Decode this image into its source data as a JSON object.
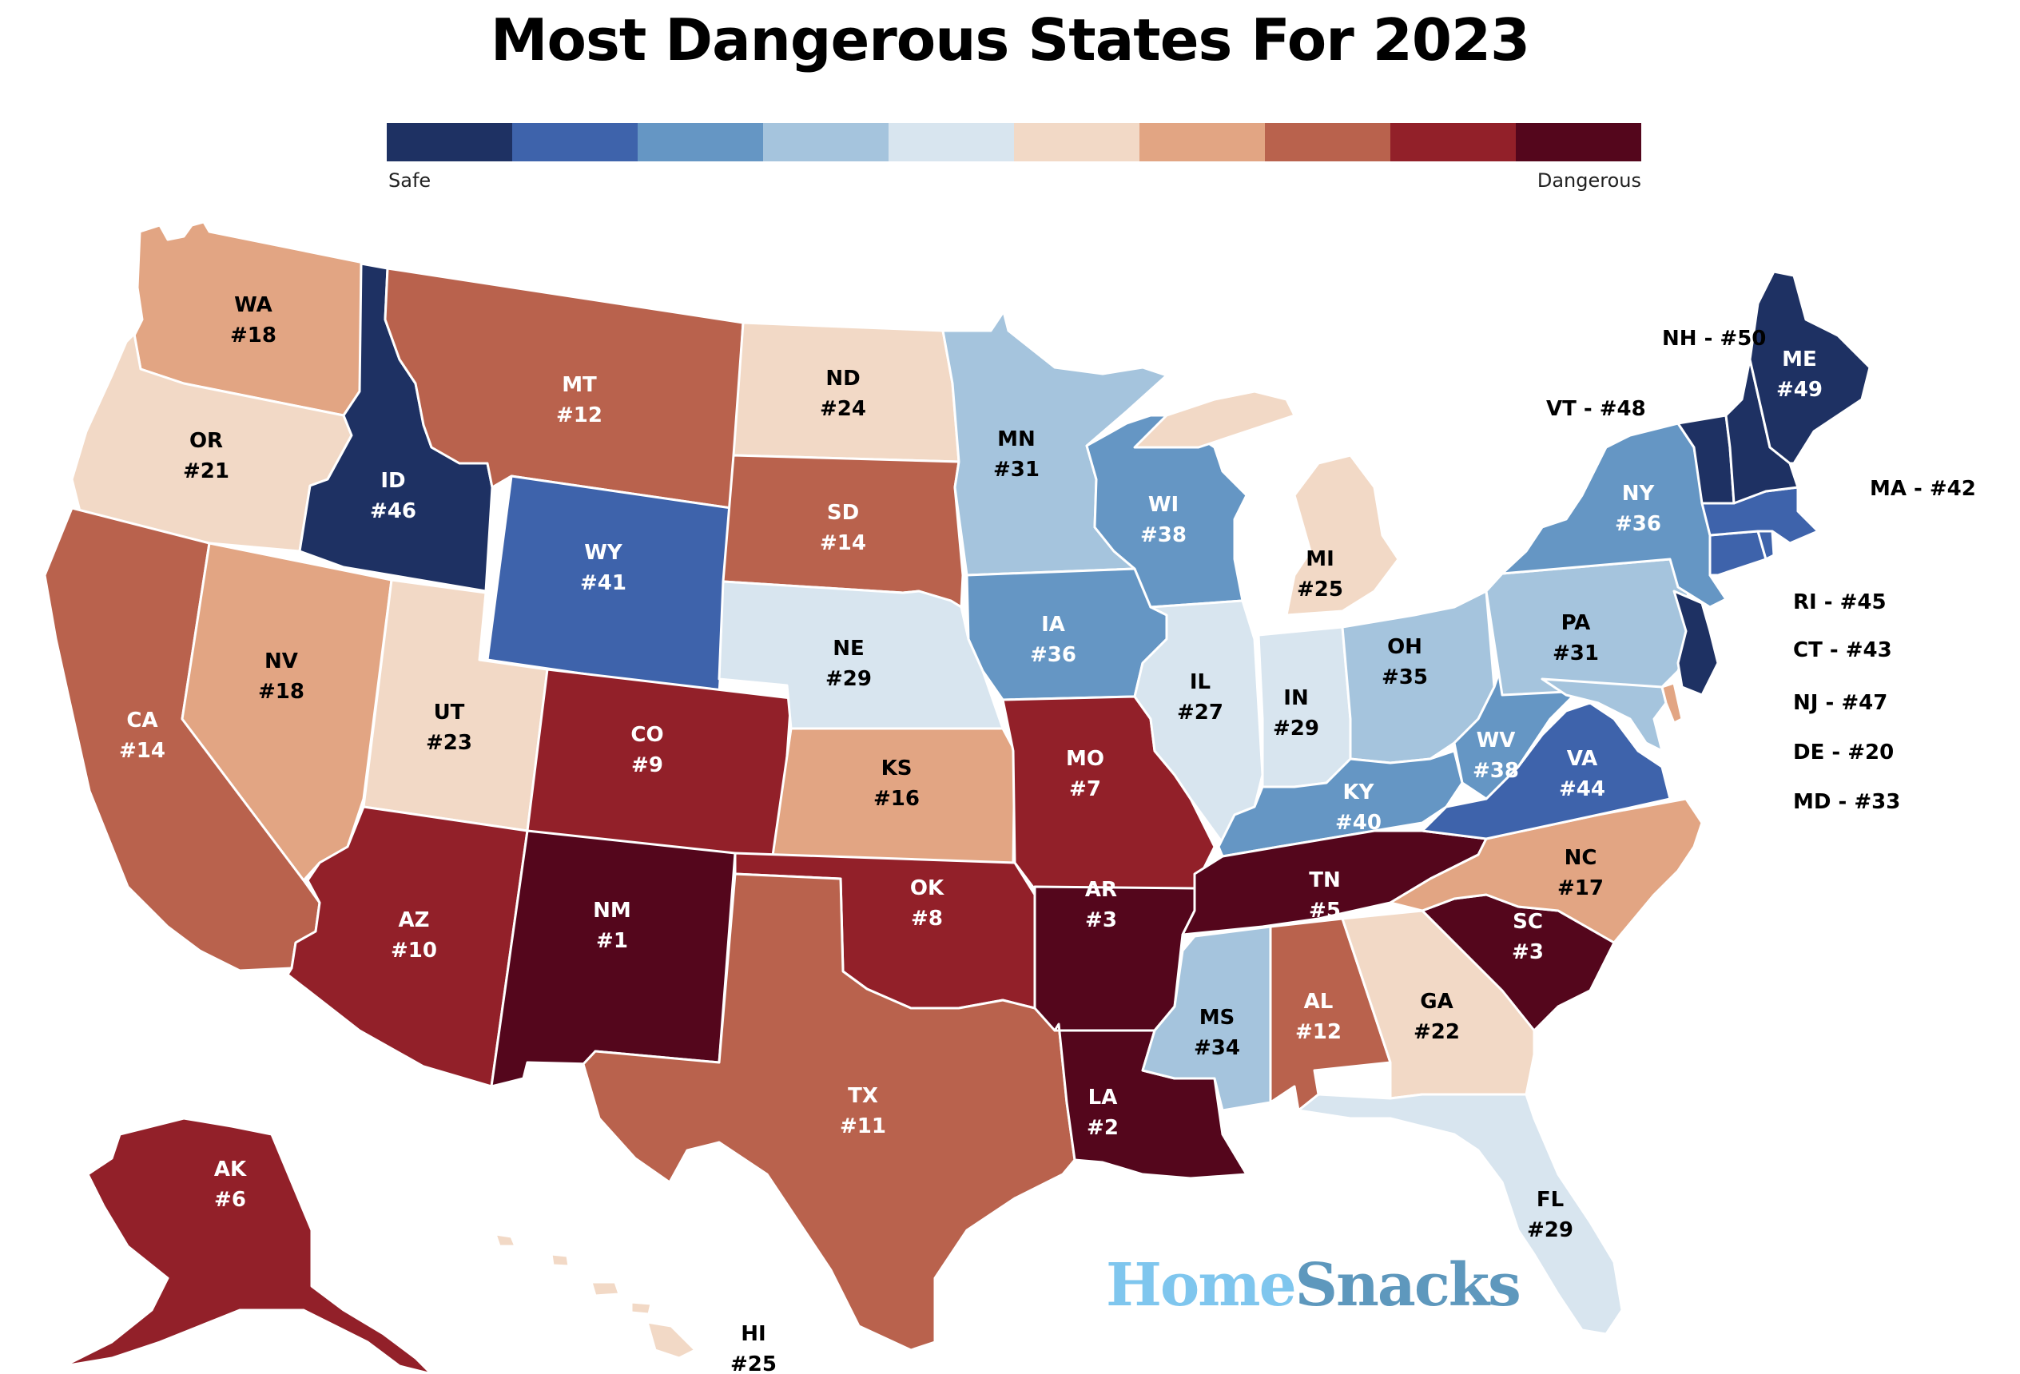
{
  "title": "Most Dangerous States For 2023",
  "legend": {
    "min_label": "Safe",
    "max_label": "Dangerous",
    "colors": [
      "#1e3163",
      "#3e63ab",
      "#6596c4",
      "#a5c4dd",
      "#d8e5ef",
      "#f2d9c6",
      "#e2a583",
      "#b9624d",
      "#922029",
      "#54061c"
    ]
  },
  "brand": {
    "part1": "Home",
    "part2": "Snacks"
  },
  "states": [
    {
      "abbr": "WA",
      "rank": "#18",
      "bin": 6
    },
    {
      "abbr": "OR",
      "rank": "#21",
      "bin": 5
    },
    {
      "abbr": "CA",
      "rank": "#14",
      "bin": 7
    },
    {
      "abbr": "ID",
      "rank": "#46",
      "bin": 0
    },
    {
      "abbr": "NV",
      "rank": "#18",
      "bin": 6
    },
    {
      "abbr": "MT",
      "rank": "#12",
      "bin": 7
    },
    {
      "abbr": "WY",
      "rank": "#41",
      "bin": 1
    },
    {
      "abbr": "UT",
      "rank": "#23",
      "bin": 5
    },
    {
      "abbr": "AZ",
      "rank": "#10",
      "bin": 8
    },
    {
      "abbr": "CO",
      "rank": "#9",
      "bin": 8
    },
    {
      "abbr": "NM",
      "rank": "#1",
      "bin": 9
    },
    {
      "abbr": "ND",
      "rank": "#24",
      "bin": 5
    },
    {
      "abbr": "SD",
      "rank": "#14",
      "bin": 7
    },
    {
      "abbr": "NE",
      "rank": "#29",
      "bin": 4
    },
    {
      "abbr": "KS",
      "rank": "#16",
      "bin": 6
    },
    {
      "abbr": "OK",
      "rank": "#8",
      "bin": 8
    },
    {
      "abbr": "TX",
      "rank": "#11",
      "bin": 7
    },
    {
      "abbr": "MN",
      "rank": "#31",
      "bin": 3
    },
    {
      "abbr": "IA",
      "rank": "#36",
      "bin": 2
    },
    {
      "abbr": "MO",
      "rank": "#7",
      "bin": 8
    },
    {
      "abbr": "AR",
      "rank": "#3",
      "bin": 9
    },
    {
      "abbr": "LA",
      "rank": "#2",
      "bin": 9
    },
    {
      "abbr": "WI",
      "rank": "#38",
      "bin": 2
    },
    {
      "abbr": "IL",
      "rank": "#27",
      "bin": 4
    },
    {
      "abbr": "MI",
      "rank": "#25",
      "bin": 5
    },
    {
      "abbr": "IN",
      "rank": "#29",
      "bin": 4
    },
    {
      "abbr": "OH",
      "rank": "#35",
      "bin": 3
    },
    {
      "abbr": "KY",
      "rank": "#40",
      "bin": 2
    },
    {
      "abbr": "TN",
      "rank": "#5",
      "bin": 9
    },
    {
      "abbr": "MS",
      "rank": "#34",
      "bin": 3
    },
    {
      "abbr": "AL",
      "rank": "#12",
      "bin": 7
    },
    {
      "abbr": "GA",
      "rank": "#22",
      "bin": 5
    },
    {
      "abbr": "FL",
      "rank": "#29",
      "bin": 4
    },
    {
      "abbr": "SC",
      "rank": "#3",
      "bin": 9
    },
    {
      "abbr": "NC",
      "rank": "#17",
      "bin": 6
    },
    {
      "abbr": "VA",
      "rank": "#44",
      "bin": 1
    },
    {
      "abbr": "WV",
      "rank": "#38",
      "bin": 2
    },
    {
      "abbr": "PA",
      "rank": "#31",
      "bin": 3
    },
    {
      "abbr": "NY",
      "rank": "#36",
      "bin": 2
    },
    {
      "abbr": "ME",
      "rank": "#49",
      "bin": 0
    },
    {
      "abbr": "AK",
      "rank": "#6",
      "bin": 8
    },
    {
      "abbr": "HI",
      "rank": "#25",
      "bin": 5
    }
  ],
  "callouts": [
    {
      "abbr": "NH",
      "rank": "#50",
      "bin": 0,
      "text": "NH - #50"
    },
    {
      "abbr": "VT",
      "rank": "#48",
      "bin": 0,
      "text": "VT - #48"
    },
    {
      "abbr": "MA",
      "rank": "#42",
      "bin": 1,
      "text": "MA - #42"
    },
    {
      "abbr": "RI",
      "rank": "#45",
      "bin": 1,
      "text": "RI - #45"
    },
    {
      "abbr": "CT",
      "rank": "#43",
      "bin": 1,
      "text": "CT - #43"
    },
    {
      "abbr": "NJ",
      "rank": "#47",
      "bin": 0,
      "text": "NJ - #47"
    },
    {
      "abbr": "DE",
      "rank": "#20",
      "bin": 6,
      "text": "DE - #20"
    },
    {
      "abbr": "MD",
      "rank": "#33",
      "bin": 3,
      "text": "MD - #33"
    }
  ]
}
